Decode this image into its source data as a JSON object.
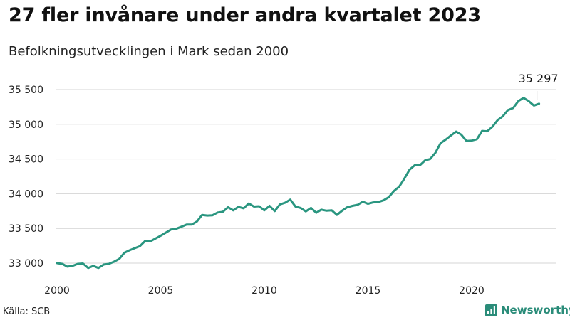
{
  "title": "27 fler invånare under andra kvartalet 2023",
  "subtitle": "Befolkningsutvecklingen i Mark sedan 2000",
  "source": "Källa: SCB",
  "brand": {
    "name": "Newsworthy",
    "icon": "newsworthy-logo-icon",
    "color": "#2a8c79"
  },
  "chart_data": {
    "type": "line",
    "title": "27 fler invånare under andra kvartalet 2023",
    "subtitle": "Befolkningsutvecklingen i Mark sedan 2000",
    "xlabel": "",
    "ylabel": "",
    "xlim": [
      2000,
      2023.5
    ],
    "ylim": [
      32900,
      35600
    ],
    "x_ticks": [
      2000,
      2005,
      2010,
      2015,
      2020
    ],
    "x_tick_labels": [
      "2000",
      "2005",
      "2010",
      "2015",
      "2020"
    ],
    "y_ticks": [
      33000,
      33500,
      34000,
      34500,
      35000,
      35500
    ],
    "y_tick_labels": [
      "33 000",
      "33 500",
      "34 000",
      "34 500",
      "35 000",
      "35 500"
    ],
    "grid": "horizontal",
    "line_color": "#2a9680",
    "annotation": {
      "x": 2023.25,
      "y": 35297,
      "label": "35 297"
    },
    "series": [
      {
        "x": [
          2000,
          2000.25,
          2000.5,
          2000.75,
          2001,
          2001.25,
          2001.5,
          2001.75,
          2002,
          2002.25,
          2002.5,
          2002.75,
          2003,
          2003.25,
          2003.5,
          2003.75,
          2004,
          2004.25,
          2004.5,
          2004.75,
          2005,
          2005.25,
          2005.5,
          2005.75,
          2006,
          2006.25,
          2006.5,
          2006.75,
          2007,
          2007.25,
          2007.5,
          2007.75,
          2008,
          2008.25,
          2008.5,
          2008.75,
          2009,
          2009.25,
          2009.5,
          2009.75,
          2010,
          2010.25,
          2010.5,
          2010.75,
          2011,
          2011.25,
          2011.5,
          2011.75,
          2012,
          2012.25,
          2012.5,
          2012.75,
          2013,
          2013.25,
          2013.5,
          2013.75,
          2014,
          2014.25,
          2014.5,
          2014.75,
          2015,
          2015.25,
          2015.5,
          2015.75,
          2016,
          2016.25,
          2016.5,
          2016.75,
          2017,
          2017.25,
          2017.5,
          2017.75,
          2018,
          2018.25,
          2018.5,
          2018.75,
          2019,
          2019.25,
          2019.5,
          2019.75,
          2020,
          2020.25,
          2020.5,
          2020.75,
          2021,
          2021.25,
          2021.5,
          2021.75,
          2022,
          2022.25,
          2022.5,
          2022.75,
          2023,
          2023.25
        ],
        "y": [
          33000,
          32990,
          32950,
          32960,
          32990,
          32995,
          32930,
          32960,
          32930,
          32980,
          32990,
          33020,
          33060,
          33150,
          33185,
          33215,
          33245,
          33320,
          33315,
          33355,
          33395,
          33440,
          33485,
          33495,
          33525,
          33555,
          33555,
          33600,
          33695,
          33685,
          33690,
          33730,
          33740,
          33805,
          33760,
          33810,
          33790,
          33860,
          33815,
          33820,
          33760,
          33825,
          33750,
          33845,
          33870,
          33915,
          33815,
          33795,
          33745,
          33795,
          33725,
          33770,
          33755,
          33760,
          33695,
          33755,
          33805,
          33825,
          33840,
          33885,
          33855,
          33875,
          33880,
          33905,
          33950,
          34040,
          34100,
          34215,
          34345,
          34410,
          34410,
          34480,
          34500,
          34590,
          34730,
          34780,
          34840,
          34895,
          34850,
          34760,
          34765,
          34785,
          34905,
          34900,
          34965,
          35060,
          35115,
          35205,
          35235,
          35335,
          35380,
          35335,
          35270,
          35297
        ]
      }
    ]
  }
}
